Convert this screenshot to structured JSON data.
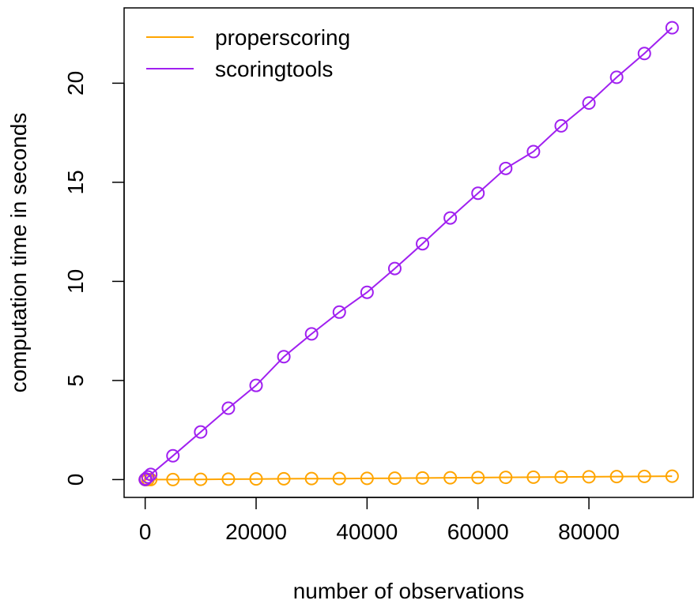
{
  "chart_data": {
    "type": "line",
    "xlabel": "number of observations",
    "ylabel": "computation time in seconds",
    "xlim": [
      -3800,
      98800
    ],
    "ylim": [
      -0.9,
      23.8
    ],
    "x_ticks": [
      0,
      20000,
      40000,
      60000,
      80000
    ],
    "y_ticks": [
      0,
      5,
      10,
      15,
      20
    ],
    "x_tick_labels": [
      "0",
      "20000",
      "40000",
      "60000",
      "80000"
    ],
    "y_tick_labels": [
      "0",
      "5",
      "10",
      "15",
      "20"
    ],
    "legend_position": "top-left",
    "marker": "open-circle",
    "grid": false,
    "x": [
      10,
      100,
      500,
      1000,
      5000,
      10000,
      15000,
      20000,
      25000,
      30000,
      35000,
      40000,
      45000,
      50000,
      55000,
      60000,
      65000,
      70000,
      75000,
      80000,
      85000,
      90000,
      95000
    ],
    "series": [
      {
        "name": "properscoring",
        "color": "#FFA500",
        "values": [
          0.0,
          0.0,
          0.0,
          0.0,
          0.0,
          0.01,
          0.02,
          0.03,
          0.04,
          0.05,
          0.05,
          0.06,
          0.07,
          0.08,
          0.09,
          0.1,
          0.11,
          0.12,
          0.13,
          0.14,
          0.15,
          0.16,
          0.17
        ]
      },
      {
        "name": "scoringtools",
        "color": "#A020F0",
        "values": [
          0.0,
          0.03,
          0.13,
          0.26,
          1.2,
          2.4,
          3.6,
          4.75,
          6.2,
          7.35,
          8.45,
          9.45,
          10.65,
          11.9,
          13.2,
          14.45,
          15.7,
          16.55,
          17.85,
          19.0,
          20.3,
          21.5,
          22.8
        ]
      }
    ]
  }
}
